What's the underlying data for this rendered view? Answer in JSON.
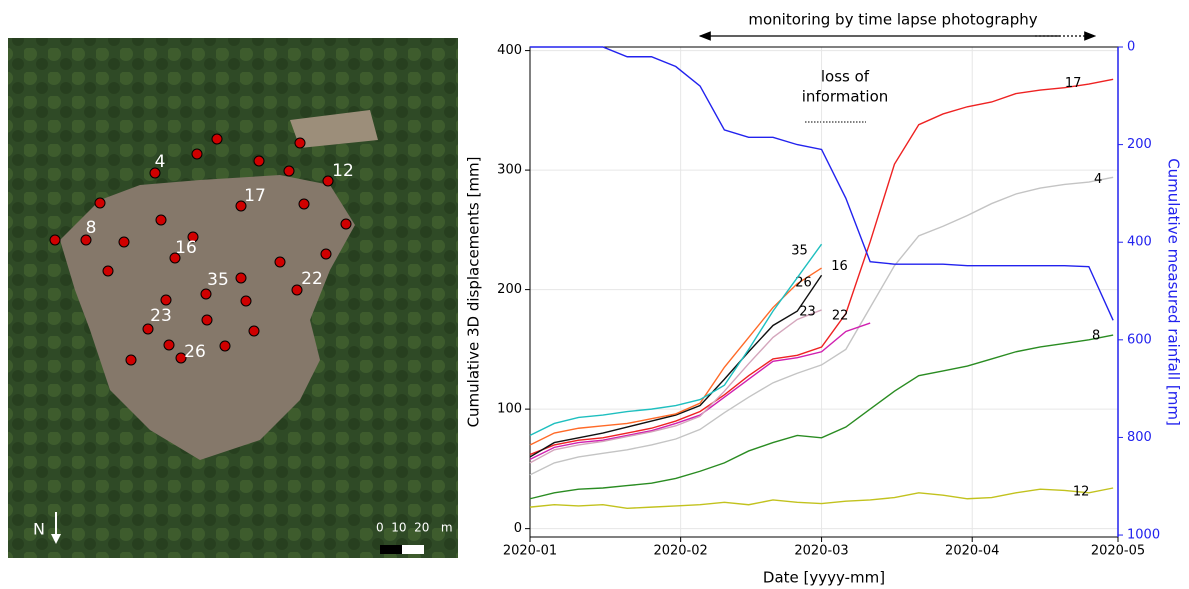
{
  "map": {
    "point_labels": [
      "4",
      "8",
      "12",
      "16",
      "17",
      "22",
      "23",
      "26",
      "35"
    ],
    "north": "N",
    "scale_label": "0  10  20   m"
  },
  "chart_data": {
    "type": "line",
    "top_annotation": "monitoring by time lapse photography",
    "annotation_lines": [
      "loss of",
      "information"
    ],
    "xlabel": "Date [yyyy-mm]",
    "ylabel": "Cumulative 3D displacements [mm]",
    "y2label": "Cumulative measured rainfall [mm]",
    "x": [
      0,
      5,
      10,
      15,
      20,
      25,
      30,
      35,
      40,
      45,
      50,
      55,
      60,
      65,
      70,
      75,
      80,
      85,
      90,
      95,
      100,
      105,
      110,
      115,
      120
    ],
    "xlim": [
      0,
      121
    ],
    "xticks": [
      {
        "value": 0,
        "label": "2020-01"
      },
      {
        "value": 31,
        "label": "2020-02"
      },
      {
        "value": 60,
        "label": "2020-03"
      },
      {
        "value": 91,
        "label": "2020-04"
      },
      {
        "value": 121,
        "label": "2020-05"
      }
    ],
    "ylim": [
      -7,
      403
    ],
    "yticks": [
      0,
      100,
      200,
      300,
      400
    ],
    "y2lim": [
      1004,
      0
    ],
    "y2ticks": [
      0,
      200,
      400,
      600,
      800,
      1000
    ],
    "grid": true,
    "series": [
      {
        "name": "12",
        "color": "#c2c21e",
        "values": [
          18,
          20,
          19,
          20,
          17,
          18,
          19,
          20,
          22,
          20,
          24,
          22,
          21,
          23,
          24,
          26,
          30,
          28,
          25,
          26,
          30,
          33,
          32,
          30,
          34
        ]
      },
      {
        "name": "8",
        "color": "#2a8c22",
        "values": [
          25,
          30,
          33,
          34,
          36,
          38,
          42,
          48,
          55,
          65,
          72,
          78,
          76,
          85,
          100,
          115,
          128,
          132,
          136,
          142,
          148,
          152,
          155,
          158,
          162
        ]
      },
      {
        "name": "4",
        "color": "#c4c4c4",
        "values": [
          45,
          55,
          60,
          63,
          66,
          70,
          75,
          83,
          97,
          110,
          122,
          130,
          137,
          150,
          185,
          220,
          245,
          253,
          262,
          272,
          280,
          285,
          288,
          290,
          294
        ]
      },
      {
        "name": "17",
        "color": "#ee2222",
        "values": [
          62,
          70,
          74,
          76,
          80,
          84,
          90,
          98,
          112,
          128,
          142,
          145,
          152,
          180,
          240,
          305,
          338,
          347,
          353,
          357,
          364,
          367,
          369,
          372,
          376
        ]
      },
      {
        "name": "22",
        "color": "#d020b0",
        "values": [
          58,
          68,
          72,
          74,
          78,
          82,
          88,
          95,
          110,
          125,
          140,
          143,
          148,
          165,
          172,
          null,
          null,
          null,
          null,
          null,
          null,
          null,
          null,
          null,
          null
        ]
      },
      {
        "name": "23",
        "color": "#d4a6bc",
        "values": [
          55,
          66,
          70,
          73,
          77,
          81,
          86,
          94,
          115,
          138,
          160,
          175,
          183,
          null,
          null,
          null,
          null,
          null,
          null,
          null,
          null,
          null,
          null,
          null,
          null
        ]
      },
      {
        "name": "16",
        "color": "#111111",
        "values": [
          60,
          72,
          76,
          80,
          85,
          90,
          95,
          103,
          125,
          148,
          170,
          182,
          212,
          null,
          null,
          null,
          null,
          null,
          null,
          null,
          null,
          null,
          null,
          null,
          null
        ]
      },
      {
        "name": "26",
        "color": "#ff6a28",
        "values": [
          70,
          80,
          84,
          86,
          88,
          92,
          96,
          105,
          135,
          160,
          185,
          205,
          218,
          null,
          null,
          null,
          null,
          null,
          null,
          null,
          null,
          null,
          null,
          null,
          null
        ]
      },
      {
        "name": "35",
        "color": "#1fbfbf",
        "values": [
          78,
          88,
          93,
          95,
          98,
          100,
          103,
          108,
          120,
          150,
          182,
          210,
          238,
          null,
          null,
          null,
          null,
          null,
          null,
          null,
          null,
          null,
          null,
          null,
          null
        ]
      },
      {
        "color": "#2222ee",
        "axis": "y2",
        "values": [
          0,
          0,
          0,
          0,
          20,
          20,
          40,
          80,
          170,
          185,
          185,
          200,
          210,
          310,
          440,
          445,
          445,
          445,
          448,
          448,
          448,
          448,
          448,
          450,
          560
        ]
      }
    ]
  }
}
